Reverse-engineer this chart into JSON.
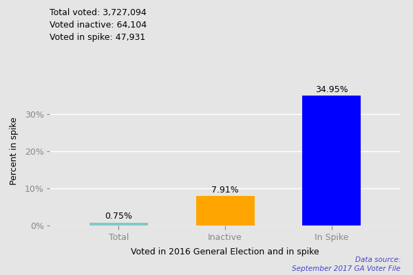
{
  "categories": [
    "Total",
    "Inactive",
    "In Spike"
  ],
  "values": [
    0.75,
    7.91,
    34.95
  ],
  "bar_colors": [
    "#7ecaca",
    "#ffa500",
    "#0000ff"
  ],
  "xlabel": "Voted in 2016 General Election and in spike",
  "ylabel": "Percent in spike",
  "ylim": [
    0,
    40
  ],
  "yticks": [
    0,
    10,
    20,
    30
  ],
  "ytick_labels": [
    "0%",
    "10%",
    "20%",
    "30%"
  ],
  "annotations": [
    "0.75%",
    "7.91%",
    "34.95%"
  ],
  "subtitle_lines": [
    "Total voted: 3,727,094",
    "Voted inactive: 64,104",
    "Voted in spike: 47,931"
  ],
  "datasource_line1": "Data source:",
  "datasource_line2": "September 2017 GA Voter File",
  "datasource_color": "#4444cc",
  "background_color": "#e5e5e5",
  "label_fontsize": 9,
  "subtitle_fontsize": 9,
  "bar_width": 0.55,
  "annotation_fontsize": 9
}
